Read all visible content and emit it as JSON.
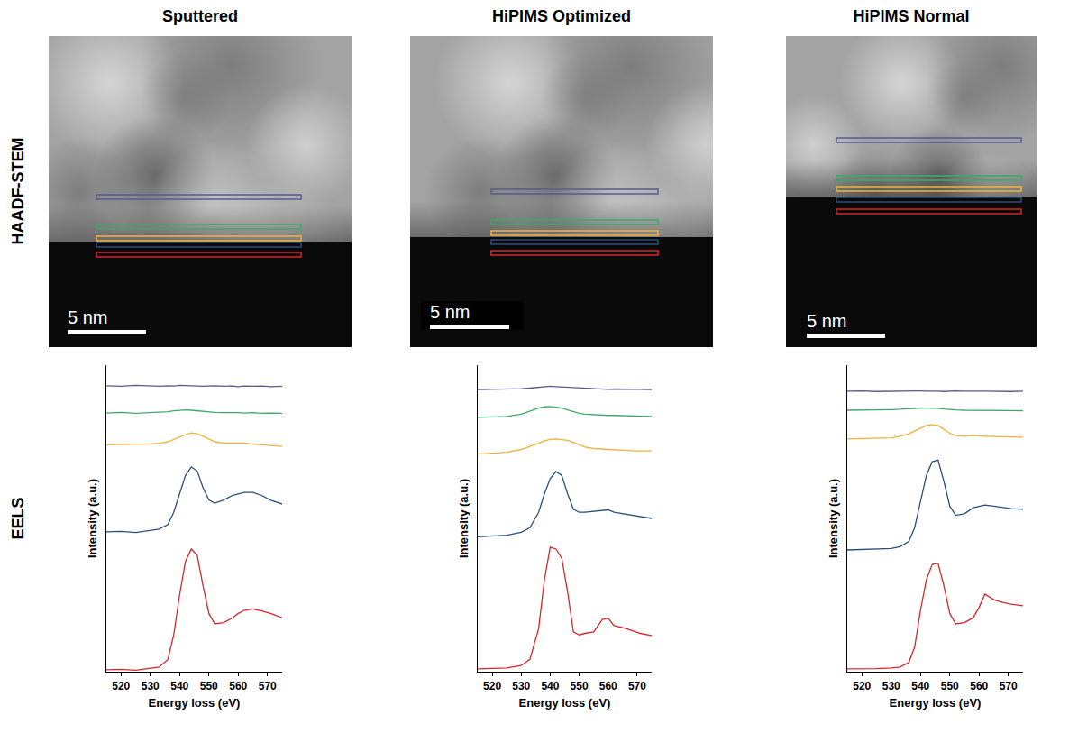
{
  "figure": {
    "row_labels": [
      "HAADF-STEM",
      "EELS"
    ],
    "scale_bar": "5 nm"
  },
  "chart_data": [
    {
      "type": "line",
      "title": "Sputtered",
      "x_label": "Energy loss (eV)",
      "y_label": "Intensity (a.u.)",
      "x": [
        515,
        520,
        525,
        530,
        533,
        536,
        538,
        540,
        542,
        544,
        546,
        548,
        550,
        552,
        555,
        558,
        560,
        562,
        565,
        568,
        571,
        575
      ],
      "series": [
        {
          "color": "#5b5a8f",
          "values": [
            93.3,
            93.1,
            93.4,
            93.2,
            93.1,
            93.3,
            93.2,
            93.4,
            93.3,
            93.2,
            93.3,
            93.1,
            93.2,
            93.3,
            93.1,
            93.2,
            93.0,
            93.2,
            93.1,
            93.2,
            93.0,
            93.1
          ]
        },
        {
          "color": "#3daa6a",
          "values": [
            84.4,
            84.6,
            84.3,
            84.5,
            84.6,
            84.8,
            85.1,
            85.3,
            85.4,
            85.3,
            85.1,
            84.9,
            84.7,
            84.6,
            84.5,
            84.6,
            84.5,
            84.4,
            84.5,
            84.3,
            84.4,
            84.3
          ]
        },
        {
          "color": "#f2b13b",
          "values": [
            74,
            74,
            74.2,
            74.3,
            74.5,
            75,
            75.8,
            76.6,
            77.3,
            77.9,
            77.6,
            76.8,
            75.8,
            75,
            74.6,
            74.6,
            74.8,
            74.6,
            74.2,
            74,
            73.8,
            73.5
          ]
        },
        {
          "color": "#2c4e7a",
          "values": [
            45.6,
            45.8,
            45.4,
            46,
            46.5,
            48,
            52,
            58,
            64,
            66.8,
            65.5,
            60,
            56,
            55,
            56,
            57.5,
            58,
            58.5,
            58.5,
            57.5,
            56,
            54.7
          ]
        },
        {
          "color": "#d7262b",
          "values": [
            0.6,
            0.8,
            0.5,
            1,
            1.5,
            4,
            12,
            25,
            36,
            40,
            38,
            28,
            19,
            15.6,
            16,
            17.5,
            19,
            20,
            20.5,
            19.8,
            19,
            17.6
          ]
        }
      ],
      "xlim": [
        515,
        575
      ],
      "xticks": [
        520,
        530,
        540,
        550,
        560,
        570
      ],
      "ylim": [
        0,
        100
      ],
      "yticks": [],
      "tick_labels": "x",
      "grid": false
    },
    {
      "type": "line",
      "title": "HiPIMS Optimized",
      "x_label": "Energy loss (eV)",
      "y_label": "Intensity (a.u.)",
      "x": [
        515,
        520,
        525,
        530,
        533,
        536,
        538,
        540,
        542,
        544,
        546,
        548,
        550,
        552,
        555,
        558,
        560,
        562,
        565,
        568,
        571,
        575
      ],
      "series": [
        {
          "color": "#5b5a8f",
          "values": [
            92,
            92.1,
            92,
            92.3,
            92.5,
            92.8,
            93,
            93.1,
            93,
            92.9,
            92.7,
            92.5,
            92.4,
            92.3,
            92.2,
            92.2,
            92.1,
            92.2,
            92.1,
            92,
            92.1,
            92
          ]
        },
        {
          "color": "#3daa6a",
          "values": [
            83,
            83.1,
            83.3,
            84,
            85,
            86,
            86.4,
            86.5,
            86.3,
            86,
            85.4,
            84.8,
            84.3,
            84,
            83.8,
            83.7,
            83.6,
            83.6,
            83.5,
            83.4,
            83.4,
            83.3
          ]
        },
        {
          "color": "#f2b13b",
          "values": [
            71,
            71.2,
            71.6,
            72.5,
            73.4,
            74.5,
            75.3,
            75.8,
            75.9,
            75.8,
            75.5,
            74.8,
            74,
            73.3,
            72.8,
            72.6,
            72.5,
            72.4,
            72.2,
            72.1,
            72,
            72
          ]
        },
        {
          "color": "#2c4e7a",
          "values": [
            44,
            44.2,
            44.5,
            45.5,
            47,
            52,
            58,
            63,
            65.3,
            64,
            58,
            53,
            52,
            52,
            52.3,
            52.6,
            52.8,
            52,
            51.5,
            51,
            50.5,
            50
          ]
        },
        {
          "color": "#d7262b",
          "values": [
            0.9,
            1,
            1.2,
            2,
            4,
            14,
            30,
            40.6,
            40,
            37,
            26,
            13,
            12,
            12.5,
            13,
            17,
            17.4,
            15,
            14.4,
            13.5,
            12.5,
            11.8
          ]
        }
      ],
      "xlim": [
        515,
        575
      ],
      "xticks": [
        520,
        530,
        540,
        550,
        560,
        570
      ],
      "ylim": [
        0,
        100
      ],
      "yticks": [],
      "tick_labels": "x",
      "grid": false
    },
    {
      "type": "line",
      "title": "HiPIMS Normal",
      "x_label": "Energy loss (eV)",
      "y_label": "Intensity (a.u.)",
      "x": [
        515,
        520,
        525,
        530,
        533,
        536,
        538,
        540,
        542,
        544,
        546,
        548,
        550,
        552,
        555,
        558,
        560,
        562,
        565,
        568,
        571,
        575
      ],
      "series": [
        {
          "color": "#5b5a8f",
          "values": [
            91.5,
            91.6,
            91.4,
            91.5,
            91.6,
            91.5,
            91.7,
            91.6,
            91.5,
            91.6,
            91.5,
            91.4,
            91.5,
            91.6,
            91.5,
            91.4,
            91.5,
            91.5,
            91.4,
            91.5,
            91.4,
            91.5
          ]
        },
        {
          "color": "#3daa6a",
          "values": [
            85.3,
            85.3,
            85.4,
            85.5,
            85.6,
            85.8,
            86,
            86,
            86,
            86,
            85.9,
            85.7,
            85.5,
            85.4,
            85.3,
            85.3,
            85.4,
            85.2,
            85.3,
            85.2,
            85.2,
            85.1
          ]
        },
        {
          "color": "#f2b13b",
          "values": [
            75.9,
            76,
            76,
            76.3,
            76.8,
            77.6,
            78.5,
            79.5,
            80.3,
            80.6,
            80.3,
            79,
            77.8,
            77,
            76.8,
            77,
            77,
            76.8,
            76.7,
            76.6,
            76.5,
            76.5
          ]
        },
        {
          "color": "#2c4e7a",
          "values": [
            39.7,
            39.8,
            39.9,
            40.2,
            40.8,
            42.5,
            47,
            56,
            64,
            68.5,
            69,
            62,
            54,
            51,
            51.5,
            53.5,
            54,
            54.4,
            54,
            53.5,
            53.2,
            53
          ]
        },
        {
          "color": "#d7262b",
          "values": [
            0.9,
            0.9,
            1,
            1.2,
            1.5,
            3,
            8,
            20,
            30,
            35,
            35.3,
            28,
            19,
            15.6,
            16,
            17.6,
            21,
            25.3,
            23.5,
            22.6,
            22,
            21.5
          ]
        }
      ],
      "xlim": [
        515,
        575
      ],
      "xticks": [
        520,
        530,
        540,
        550,
        560,
        570
      ],
      "ylim": [
        0,
        100
      ],
      "yticks": [],
      "tick_labels": "x",
      "grid": false
    }
  ]
}
